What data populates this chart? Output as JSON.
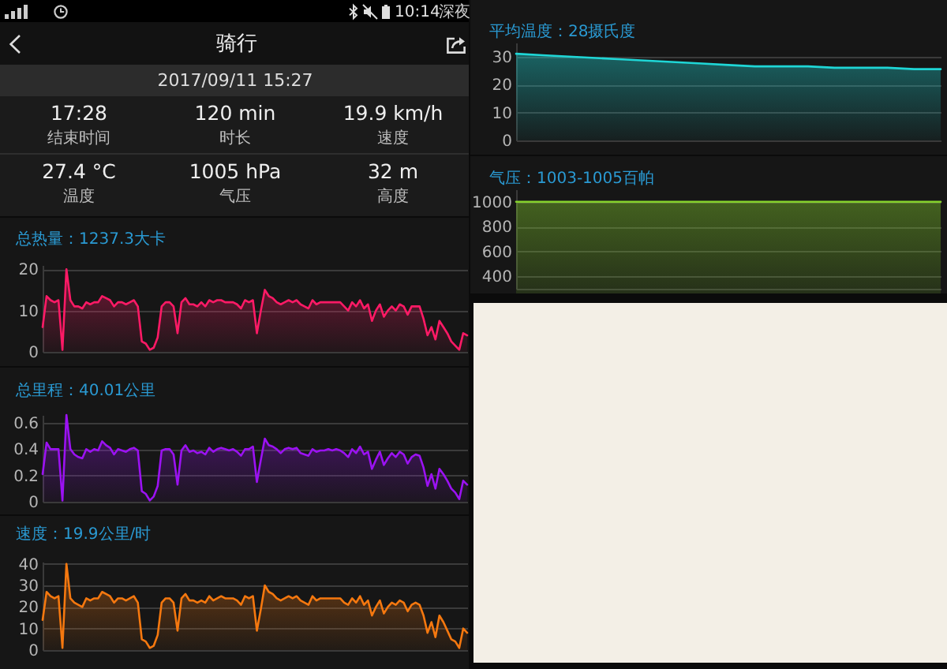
{
  "chart_data": [
    {
      "type": "other",
      "title": "骑行",
      "subtitle": "2017/09/11 15:27",
      "annotations": [
        "10:14",
        "深夜",
        "17:28",
        "结束时间",
        "120 min",
        "时长",
        "19.9 km/h",
        "速度",
        "27.4 °C",
        "温度",
        "1005 hPa",
        "气压",
        "32 m",
        "高度"
      ]
    },
    {
      "type": "area",
      "title": "总热量：1237.3大卡",
      "categories": [
        null,
        null,
        null,
        null,
        null,
        null,
        null,
        null,
        null,
        null,
        null,
        null,
        null,
        null,
        null,
        null,
        null,
        null,
        null,
        null,
        null,
        null,
        null,
        null,
        null,
        null,
        null,
        null,
        null,
        null,
        null,
        null,
        null,
        null,
        null,
        null,
        null,
        null,
        null,
        null,
        null,
        null,
        null,
        null,
        null,
        null,
        null,
        null,
        null,
        null,
        null,
        null,
        null,
        null,
        null,
        null,
        null,
        null,
        null,
        null,
        null,
        null,
        null,
        null,
        null,
        null,
        null,
        null,
        null,
        null,
        null,
        null,
        null,
        null,
        null,
        null,
        null,
        null,
        null,
        null,
        null,
        null,
        null,
        null,
        null,
        null,
        null,
        null,
        null,
        null,
        null,
        null,
        null,
        null,
        null,
        null,
        null,
        null,
        null,
        null,
        null,
        null,
        null,
        null,
        null,
        null,
        null,
        null
      ],
      "values": [
        6,
        13.5,
        12.5,
        12,
        12.5,
        0.5,
        20,
        12.5,
        11,
        11,
        10.5,
        12,
        11.5,
        12,
        12,
        13.5,
        13,
        12.5,
        11,
        12,
        12,
        11.5,
        12,
        12.5,
        11,
        2.5,
        2,
        0.5,
        1,
        3.5,
        11,
        12,
        12,
        11,
        4.5,
        12,
        13,
        11.5,
        11.5,
        11,
        12,
        11,
        12.5,
        12,
        12.5,
        12.5,
        12,
        12,
        12,
        11.5,
        10.5,
        12.5,
        12,
        12.5,
        4.5,
        10,
        15,
        13.5,
        13,
        12,
        11.5,
        12,
        12.5,
        12,
        12.5,
        11.5,
        11,
        10.5,
        12.5,
        11.5,
        12,
        12,
        12,
        12,
        12,
        12,
        11,
        10,
        12,
        11,
        12.5,
        10.5,
        11.5,
        7.5,
        10,
        11.5,
        8.5,
        10,
        11,
        10,
        11.5,
        11,
        9,
        11,
        11,
        11,
        8,
        4,
        6,
        3,
        7.5,
        6,
        4.5,
        2.5,
        1.5,
        0.5,
        4.5,
        4
      ],
      "color": "#ff1a66",
      "ylim": [
        0,
        21
      ],
      "yticks": [
        0,
        10,
        20
      ],
      "grid": "y",
      "tick_labels": "y"
    },
    {
      "type": "area",
      "title": "总里程：40.01公里",
      "categories": [
        null,
        null,
        null,
        null,
        null,
        null,
        null,
        null,
        null,
        null,
        null,
        null,
        null,
        null,
        null,
        null,
        null,
        null,
        null,
        null,
        null,
        null,
        null,
        null,
        null,
        null,
        null,
        null,
        null,
        null,
        null,
        null,
        null,
        null,
        null,
        null,
        null,
        null,
        null,
        null,
        null,
        null,
        null,
        null,
        null,
        null,
        null,
        null,
        null,
        null,
        null,
        null,
        null,
        null,
        null,
        null,
        null,
        null,
        null,
        null,
        null,
        null,
        null,
        null,
        null,
        null,
        null,
        null,
        null,
        null,
        null,
        null,
        null,
        null,
        null,
        null,
        null,
        null,
        null,
        null,
        null,
        null,
        null,
        null,
        null,
        null,
        null,
        null,
        null,
        null,
        null,
        null,
        null,
        null,
        null,
        null,
        null,
        null,
        null,
        null,
        null,
        null,
        null,
        null,
        null,
        null,
        null,
        null
      ],
      "values": [
        0.21,
        0.45,
        0.4,
        0.4,
        0.4,
        0.01,
        0.66,
        0.4,
        0.36,
        0.34,
        0.33,
        0.4,
        0.38,
        0.4,
        0.39,
        0.46,
        0.43,
        0.41,
        0.36,
        0.4,
        0.39,
        0.38,
        0.4,
        0.41,
        0.39,
        0.08,
        0.06,
        0.01,
        0.04,
        0.12,
        0.39,
        0.4,
        0.4,
        0.36,
        0.13,
        0.39,
        0.43,
        0.38,
        0.39,
        0.37,
        0.38,
        0.36,
        0.41,
        0.38,
        0.4,
        0.41,
        0.4,
        0.39,
        0.4,
        0.38,
        0.35,
        0.4,
        0.4,
        0.42,
        0.15,
        0.32,
        0.48,
        0.43,
        0.42,
        0.4,
        0.37,
        0.4,
        0.41,
        0.4,
        0.41,
        0.37,
        0.36,
        0.35,
        0.4,
        0.38,
        0.39,
        0.39,
        0.4,
        0.39,
        0.4,
        0.39,
        0.37,
        0.34,
        0.4,
        0.37,
        0.42,
        0.36,
        0.38,
        0.25,
        0.32,
        0.38,
        0.28,
        0.33,
        0.37,
        0.34,
        0.38,
        0.36,
        0.29,
        0.34,
        0.36,
        0.35,
        0.26,
        0.12,
        0.21,
        0.1,
        0.25,
        0.21,
        0.16,
        0.1,
        0.07,
        0.02,
        0.16,
        0.13
      ],
      "color": "#9b12f2",
      "ylim": [
        0,
        0.66
      ],
      "yticks": [
        0,
        0.2,
        0.4,
        0.6
      ],
      "grid": "y",
      "tick_labels": "y"
    },
    {
      "type": "area",
      "title": "速度：19.9公里/时",
      "categories": [
        null,
        null,
        null,
        null,
        null,
        null,
        null,
        null,
        null,
        null,
        null,
        null,
        null,
        null,
        null,
        null,
        null,
        null,
        null,
        null,
        null,
        null,
        null,
        null,
        null,
        null,
        null,
        null,
        null,
        null,
        null,
        null,
        null,
        null,
        null,
        null,
        null,
        null,
        null,
        null,
        null,
        null,
        null,
        null,
        null,
        null,
        null,
        null,
        null,
        null,
        null,
        null,
        null,
        null,
        null,
        null,
        null,
        null,
        null,
        null,
        null,
        null,
        null,
        null,
        null,
        null,
        null,
        null,
        null,
        null,
        null,
        null,
        null,
        null,
        null,
        null,
        null,
        null,
        null,
        null,
        null,
        null,
        null,
        null,
        null,
        null,
        null,
        null,
        null,
        null,
        null,
        null,
        null,
        null,
        null,
        null,
        null,
        null,
        null,
        null,
        null,
        null,
        null,
        null,
        null,
        null,
        null,
        null
      ],
      "values": [
        14,
        27,
        25,
        24,
        25,
        1,
        40,
        24,
        22,
        21,
        20,
        24,
        23,
        24,
        24,
        27,
        26,
        25,
        22,
        24,
        24,
        23,
        24,
        25,
        22,
        5,
        4,
        1,
        2,
        7,
        22,
        24,
        24,
        22,
        9,
        24,
        26,
        23,
        23,
        22,
        23,
        22,
        25,
        23,
        24,
        25,
        24,
        24,
        24,
        23,
        21,
        25,
        24,
        25,
        9,
        19,
        30,
        27,
        26,
        24,
        23,
        24,
        25,
        24,
        25,
        23,
        22,
        21,
        25,
        23,
        24,
        24,
        24,
        24,
        24,
        24,
        22,
        21,
        24,
        22,
        25,
        21,
        23,
        16,
        20,
        23,
        17,
        20,
        22,
        21,
        23,
        22,
        18,
        21,
        22,
        21,
        16,
        8,
        13,
        6,
        16,
        13,
        9,
        5,
        4,
        1,
        10,
        8
      ],
      "color": "#f5780f",
      "ylim": [
        0,
        41
      ],
      "yticks": [
        0,
        10,
        20,
        30,
        40
      ],
      "grid": "y",
      "tick_labels": "y"
    },
    {
      "type": "area",
      "title": "平均温度：28摄氏度",
      "categories": [
        null,
        null,
        null,
        null,
        null,
        null,
        null,
        null,
        null,
        null,
        null,
        null,
        null,
        null,
        null,
        null,
        null
      ],
      "values": [
        31,
        30.5,
        30,
        29.5,
        29,
        28.5,
        28,
        27.5,
        27,
        26.5,
        26.5,
        26.5,
        26,
        26,
        26,
        25.5,
        25.5
      ],
      "color": "#1fd6d6",
      "ylim": [
        0,
        35
      ],
      "yticks": [
        0,
        10,
        20,
        30
      ],
      "grid": "y",
      "tick_labels": "y"
    },
    {
      "type": "area",
      "title": "气压：1003-1005百帕",
      "categories": [
        null,
        null,
        null,
        null,
        null,
        null,
        null,
        null,
        null,
        null,
        null,
        null,
        null,
        null,
        null,
        null,
        null
      ],
      "values": [
        1000,
        1000,
        1000,
        1000,
        1000,
        1000,
        1000,
        1000,
        1000,
        1000,
        1000,
        1000,
        1000,
        1000,
        1000,
        1000,
        1000
      ],
      "color": "#86d12c",
      "ylim": [
        300,
        1100
      ],
      "yticks": [
        400,
        600,
        800,
        1000
      ],
      "grid": "y",
      "tick_labels": "y"
    }
  ]
}
